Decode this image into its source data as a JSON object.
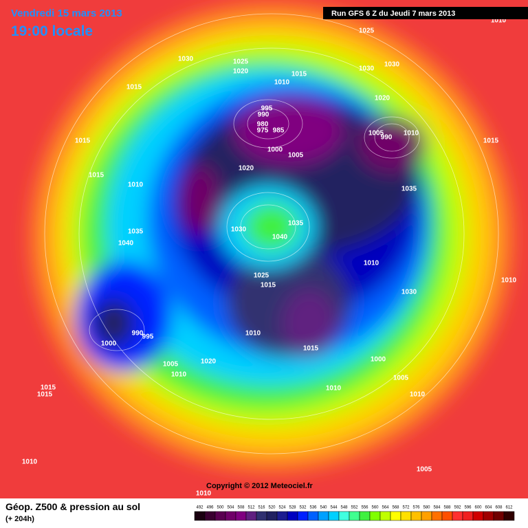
{
  "header": {
    "date": "Vendredi 15 mars 2013",
    "time": "19:00 locale",
    "run": "Run GFS 6 Z du Jeudi 7 mars 2013"
  },
  "pressure_labels": [
    "1025",
    "1030",
    "1025",
    "1020",
    "1030",
    "1030",
    "1015",
    "1015",
    "1010",
    "1020",
    "995",
    "990",
    "980",
    "975",
    "985",
    "1005",
    "990",
    "1010",
    "1015",
    "1015",
    "1000",
    "1005",
    "1020",
    "1015",
    "1010",
    "1035",
    "1035",
    "1030",
    "1035",
    "1040",
    "1040",
    "1010",
    "1025",
    "1015",
    "1030",
    "1010",
    "1010",
    "990",
    "995",
    "1000",
    "1015",
    "1000",
    "1005",
    "1020",
    "1010",
    "1005",
    "1010",
    "1010",
    "1015",
    "1015",
    "1010",
    "1005",
    "1010",
    "1010"
  ],
  "footer": {
    "copyright": "Copyright © 2012 Meteociel.fr",
    "title": "Géop. Z500 & pression au sol",
    "lead": "(+ 204h)"
  },
  "scale": {
    "values": [
      492,
      496,
      500,
      504,
      508,
      512,
      516,
      520,
      524,
      528,
      532,
      536,
      540,
      544,
      548,
      552,
      556,
      560,
      564,
      568,
      572,
      576,
      580,
      584,
      588,
      592,
      596,
      600,
      604,
      608,
      612
    ],
    "colors": [
      "#1a0010",
      "#3a0030",
      "#5a0050",
      "#700068",
      "#800080",
      "#602080",
      "#303070",
      "#202060",
      "#1c1c90",
      "#0000c0",
      "#0020ff",
      "#0060ff",
      "#00a0ff",
      "#00d0ff",
      "#40ffe0",
      "#40ff90",
      "#40f040",
      "#80ff00",
      "#c0ff00",
      "#ffff00",
      "#ffe000",
      "#ffc000",
      "#ffa000",
      "#ff7000",
      "#ff5000",
      "#ff3030",
      "#f02020",
      "#d00000",
      "#a00000",
      "#700000",
      "#300000"
    ]
  }
}
